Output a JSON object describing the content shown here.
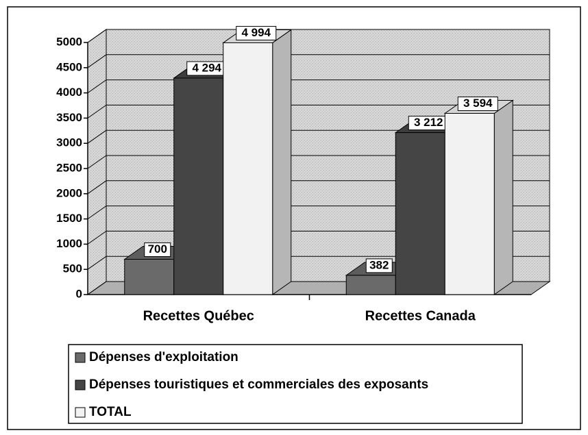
{
  "chart_data": {
    "type": "bar3d",
    "categories": [
      "Recettes Québec",
      "Recettes Canada"
    ],
    "series": [
      {
        "name": "Dépenses d'exploitation",
        "color": "#6a6a6a",
        "values": [
          700,
          382
        ],
        "value_labels": [
          "700",
          "382"
        ]
      },
      {
        "name": "Dépenses touristiques et commerciales des exposants",
        "color": "#454545",
        "values": [
          4294,
          3212
        ],
        "value_labels": [
          "4 294",
          "3 212"
        ]
      },
      {
        "name": "TOTAL",
        "color": "#f2f2f2",
        "values": [
          4994,
          3594
        ],
        "value_labels": [
          "4 994",
          "3 594"
        ]
      }
    ],
    "ylim": [
      0,
      5000
    ],
    "yticks": [
      0,
      500,
      1000,
      1500,
      2000,
      2500,
      3000,
      3500,
      4000,
      4500,
      5000
    ],
    "grid": true,
    "legend": "bottom"
  }
}
